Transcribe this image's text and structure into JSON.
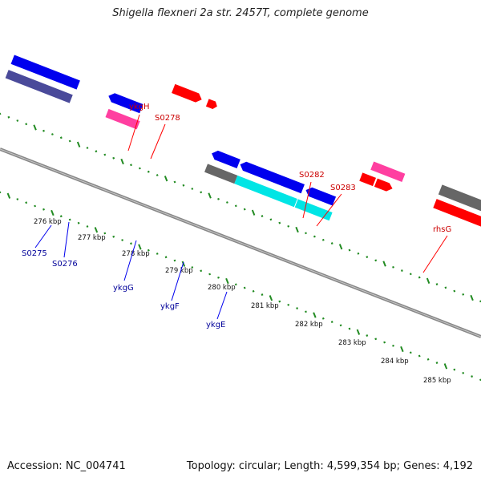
{
  "title": "Shigella flexneri 2a str. 2457T, complete genome",
  "footer": {
    "accession": "Accession: NC_004741",
    "topology": "Topology: circular; Length: 4,599,354 bp; Genes: 4,192"
  },
  "colors": {
    "forward_cds": "#ff0000",
    "reverse_cds": "#0000ee",
    "forward_label": "#cc0000",
    "reverse_label": "#000099",
    "pseudo": "#ff3fa0",
    "other": "#00e5e5",
    "gene_bar": "#666666",
    "backbone": "#888888",
    "ticks": "#228b22"
  },
  "kbp_labels": [
    "276 kbp",
    "277 kbp",
    "278 kbp",
    "279 kbp",
    "280 kbp",
    "281 kbp",
    "282 kbp",
    "283 kbp",
    "284 kbp",
    "285 kbp"
  ],
  "forward_genes": [
    "ykgH",
    "S0278",
    "S0282",
    "S0283",
    "rhsG"
  ],
  "reverse_genes": [
    "S0275",
    "S0276",
    "ykgG",
    "ykgF",
    "ykgE"
  ]
}
